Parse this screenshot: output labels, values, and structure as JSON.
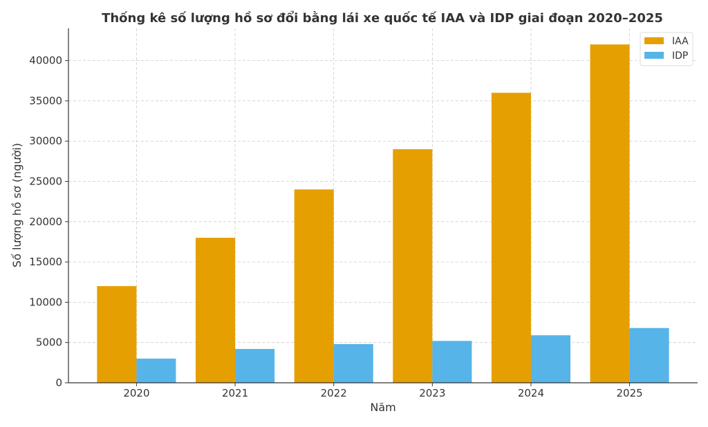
{
  "chart_data": {
    "type": "bar",
    "title": "Thống kê số lượng hồ sơ đổi bằng lái xe quốc tế IAA và IDP giai đoạn 2020–2025",
    "xlabel": "Năm",
    "ylabel": "Số lượng hồ sơ (người)",
    "categories": [
      "2020",
      "2021",
      "2022",
      "2023",
      "2024",
      "2025"
    ],
    "series": [
      {
        "name": "IAA",
        "color": "#E69F00",
        "values": [
          12000,
          18000,
          24000,
          29000,
          36000,
          42000
        ]
      },
      {
        "name": "IDP",
        "color": "#56B4E9",
        "values": [
          3000,
          4200,
          4800,
          5200,
          5900,
          6800
        ]
      }
    ],
    "ylim": [
      0,
      44000
    ],
    "yticks": [
      0,
      5000,
      10000,
      15000,
      20000,
      25000,
      30000,
      35000,
      40000
    ],
    "grid": true,
    "legend": "top-right"
  }
}
